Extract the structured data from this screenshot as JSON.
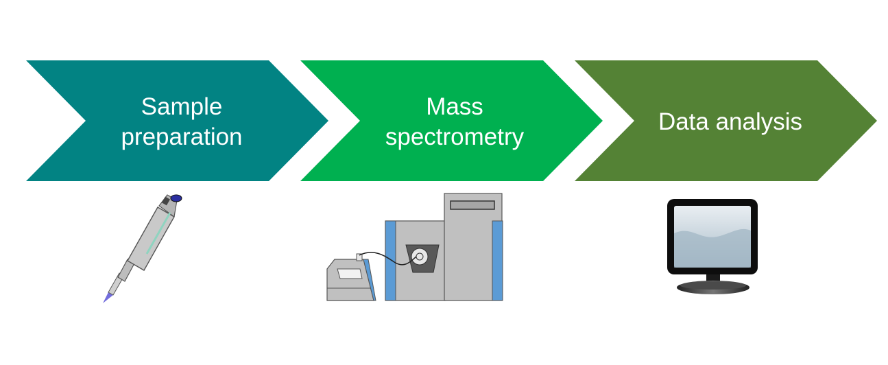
{
  "steps": [
    {
      "line1": "Sample",
      "line2": "preparation",
      "color": "#028383",
      "icon": "pipette-icon"
    },
    {
      "line1": "Mass",
      "line2": "spectrometry",
      "color": "#00b050",
      "icon": "mass-spectrometer-icon"
    },
    {
      "line1": "Data analysis",
      "line2": "",
      "color": "#548235",
      "icon": "computer-monitor-icon"
    }
  ]
}
